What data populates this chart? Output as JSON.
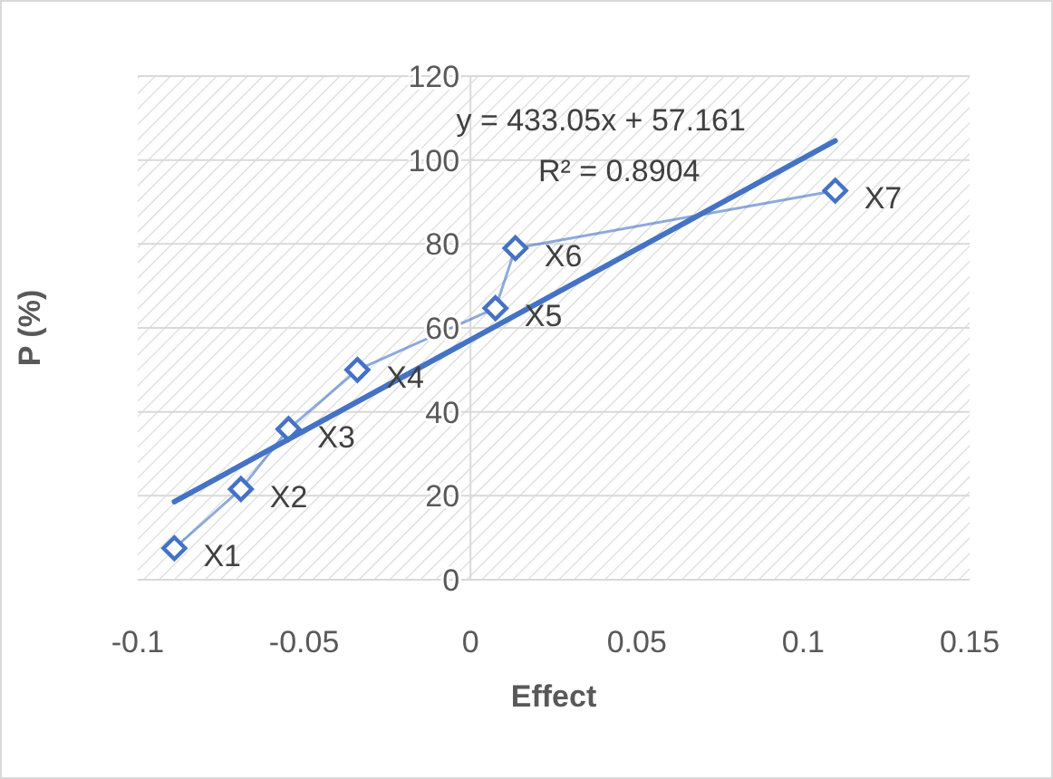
{
  "chart_data": {
    "type": "line",
    "xlabel": "Effect",
    "ylabel": "P (%)",
    "xlim": [
      -0.1,
      0.15
    ],
    "xticks": [
      -0.1,
      -0.05,
      0,
      0.05,
      0.1,
      0.15
    ],
    "ylim": [
      0,
      120
    ],
    "yticks": [
      0,
      20,
      40,
      60,
      80,
      100,
      120
    ],
    "grid": "y",
    "marker": "diamond",
    "series": [
      {
        "color": "#4472c4",
        "x": [
          -0.089,
          -0.069,
          -0.0547,
          -0.034,
          0.0075,
          0.0135,
          0.1096
        ],
        "values": [
          7.5,
          21.6,
          35.9,
          50.0,
          64.7,
          79.0,
          92.7
        ]
      },
      {
        "color": "#4472c4",
        "marker": "none",
        "x": [
          -0.089,
          0.1096
        ],
        "values": [
          18.6,
          104.6
        ]
      }
    ],
    "annotations": [
      {
        "text": "X1",
        "x": -0.089,
        "y": 7.5
      },
      {
        "text": "X2",
        "x": -0.069,
        "y": 21.6
      },
      {
        "text": "X3",
        "x": -0.0547,
        "y": 35.9
      },
      {
        "text": "X4",
        "x": -0.034,
        "y": 50.0
      },
      {
        "text": "X5",
        "x": 0.0075,
        "y": 64.7
      },
      {
        "text": "X6",
        "x": 0.0135,
        "y": 79.0
      },
      {
        "text": "X7",
        "x": 0.1096,
        "y": 92.7
      },
      "y = 433.05x + 57.161",
      "R² = 0.8904"
    ]
  }
}
